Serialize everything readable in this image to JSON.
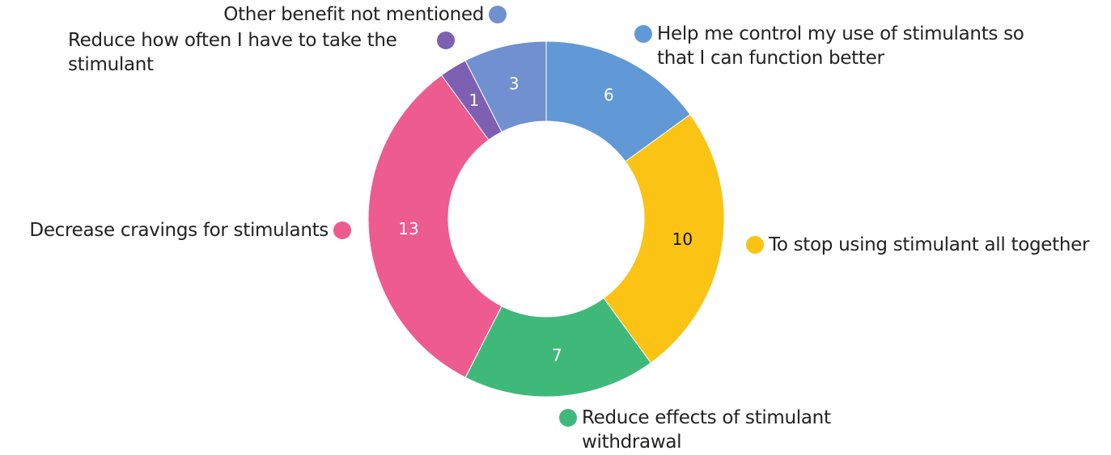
{
  "chart_data": {
    "type": "donut",
    "categories": [
      "Help me control my use of stimulants so that I can function better",
      "To stop using stimulant all together",
      "Reduce effects of stimulant withdrawal",
      "Decrease cravings for stimulants",
      "Reduce how often I have to take the stimulant",
      "Other benefit not mentioned"
    ],
    "values": [
      6,
      10,
      7,
      13,
      1,
      3
    ],
    "colors": [
      "#6199d6",
      "#fbc313",
      "#3fb97a",
      "#ee5b8f",
      "#7d60b2",
      "#7090cf"
    ]
  }
}
